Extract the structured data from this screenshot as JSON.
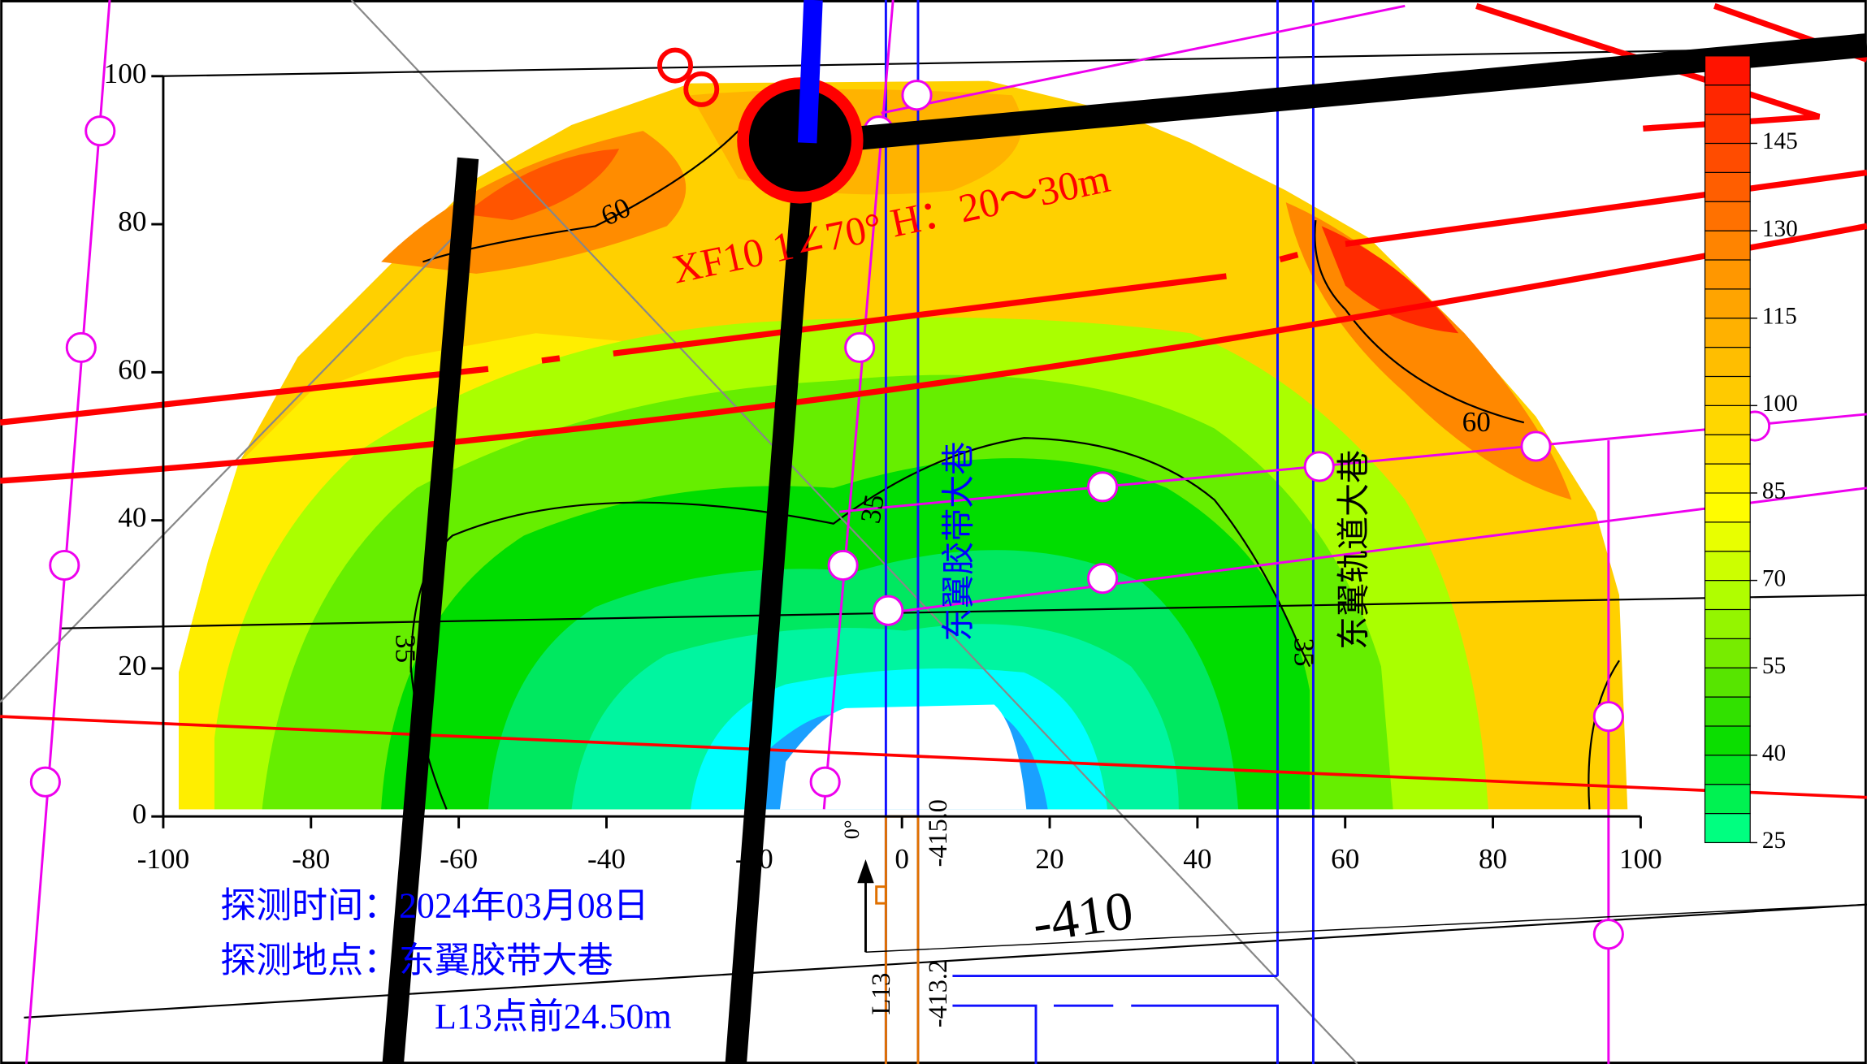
{
  "chart_data": {
    "type": "contour",
    "xlim": [
      -100,
      100
    ],
    "xticks": [
      -100,
      -80,
      -60,
      -40,
      -20,
      0,
      20,
      40,
      60,
      80,
      100
    ],
    "ylim": [
      0,
      100
    ],
    "yticks": [
      0,
      20,
      40,
      60,
      80,
      100
    ],
    "colorbar": {
      "lim": [
        25,
        160
      ],
      "ticks": [
        25,
        40,
        55,
        70,
        85,
        100,
        115,
        130,
        145
      ],
      "colormap": [
        "#00ff80",
        "#00dd00",
        "#66e600",
        "#b3ff00",
        "#ffff00",
        "#ffdd00",
        "#ffbb00",
        "#ff9900",
        "#ff6600",
        "#ff3300",
        "#ff0000"
      ]
    },
    "contour_labels": [
      60,
      60,
      35,
      35,
      35
    ],
    "annotations": {
      "fault": "XF10 1∠70° H：20～30m",
      "belt_roadway": "东翼胶带大巷",
      "track_roadway": "东翼轨道大巷",
      "elevation_1": "-410",
      "elevation_2": "-415.0",
      "elevation_3": "-413.2",
      "point": "L13",
      "angle": "0°",
      "survey_time": "探测时间：2024年03月08日",
      "survey_site": "探测地点：东翼胶带大巷",
      "survey_offset": "L13点前24.50m"
    }
  }
}
